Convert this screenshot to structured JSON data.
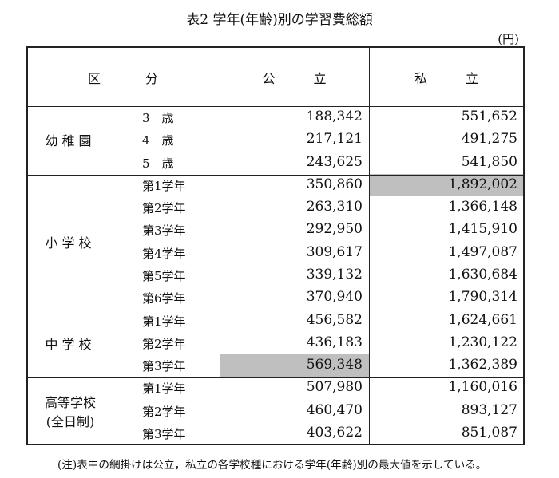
{
  "title": "表2 学年(年齢)別の学習費総額",
  "unit": "(円)",
  "table": {
    "headers": [
      "区分",
      "公立",
      "私立"
    ],
    "groups": [
      {
        "label": [
          "幼稚園"
        ],
        "rows": [
          {
            "label": "3　歳",
            "public": "188,342",
            "private": "551,652"
          },
          {
            "label": "4　歳",
            "public": "217,121",
            "private": "491,275"
          },
          {
            "label": "5　歳",
            "public": "243,625",
            "private": "541,850"
          }
        ]
      },
      {
        "label": [
          "小学校"
        ],
        "rows": [
          {
            "label": "第1学年",
            "public": "350,860",
            "private": "1,892,002",
            "shaded": "private"
          },
          {
            "label": "第2学年",
            "public": "263,310",
            "private": "1,366,148"
          },
          {
            "label": "第3学年",
            "public": "292,950",
            "private": "1,415,910"
          },
          {
            "label": "第4学年",
            "public": "309,617",
            "private": "1,497,087"
          },
          {
            "label": "第5学年",
            "public": "339,132",
            "private": "1,630,684"
          },
          {
            "label": "第6学年",
            "public": "370,940",
            "private": "1,790,314"
          }
        ]
      },
      {
        "label": [
          "中学校"
        ],
        "rows": [
          {
            "label": "第1学年",
            "public": "456,582",
            "private": "1,624,661"
          },
          {
            "label": "第2学年",
            "public": "436,183",
            "private": "1,230,122"
          },
          {
            "label": "第3学年",
            "public": "569,348",
            "private": "1,362,389",
            "shaded": "public"
          }
        ]
      },
      {
        "label": [
          "高等学校",
          "(全日制)"
        ],
        "rows": [
          {
            "label": "第1学年",
            "public": "507,980",
            "private": "1,160,016"
          },
          {
            "label": "第2学年",
            "public": "460,470",
            "private": "893,127"
          },
          {
            "label": "第3学年",
            "public": "403,622",
            "private": "851,087"
          }
        ]
      }
    ]
  },
  "note": "(注)表中の網掛けは公立，私立の各学校種における学年(年齢)別の最大値を示している。"
}
